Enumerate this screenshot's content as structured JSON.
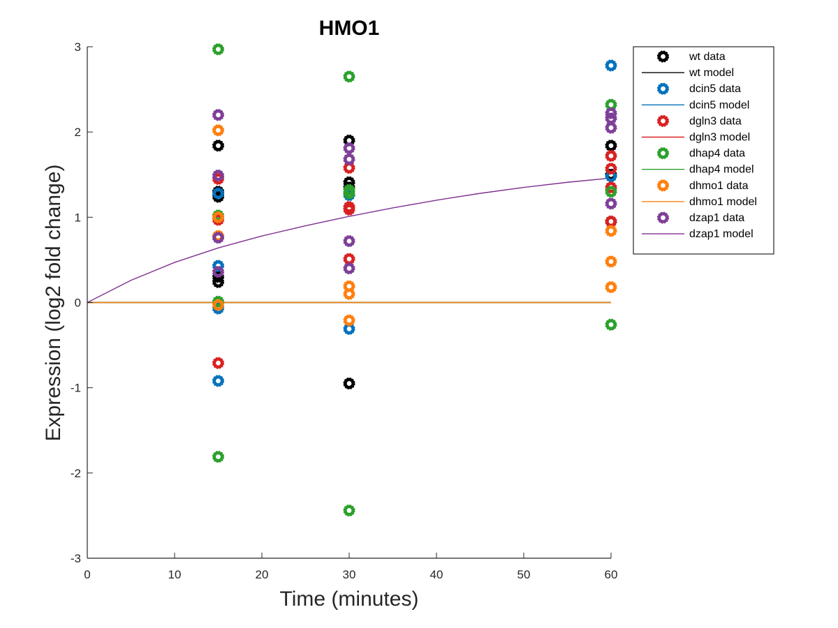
{
  "chart_data": {
    "type": "scatter",
    "title": "HMO1",
    "xlabel": "Time (minutes)",
    "ylabel": "Expression (log2 fold change)",
    "xlim": [
      0,
      60
    ],
    "ylim": [
      -3,
      3
    ],
    "xticks": [
      0,
      10,
      20,
      30,
      40,
      50,
      60
    ],
    "yticks": [
      -3,
      -2,
      -1,
      0,
      1,
      2,
      3
    ],
    "x_tick_labels": [
      "0",
      "10",
      "20",
      "30",
      "40",
      "50",
      "60"
    ],
    "y_tick_labels": [
      "-3",
      "-2",
      "-1",
      "0",
      "1",
      "2",
      "3"
    ],
    "grid": false,
    "legend_position": "top-right",
    "series": [
      {
        "name": "wt data",
        "kind": "points",
        "color": "#000000",
        "points": [
          [
            15,
            1.84
          ],
          [
            15,
            1.3
          ],
          [
            15,
            1.24
          ],
          [
            15,
            0.3
          ],
          [
            15,
            0.24
          ],
          [
            30,
            1.9
          ],
          [
            30,
            1.41
          ],
          [
            30,
            1.35
          ],
          [
            30,
            -0.95
          ],
          [
            60,
            1.84
          ],
          [
            60,
            1.5
          ],
          [
            60,
            0.95
          ]
        ]
      },
      {
        "name": "wt model",
        "kind": "line",
        "color": "#000000",
        "x": [
          0,
          60
        ],
        "y": [
          0,
          0
        ]
      },
      {
        "name": "dcin5 data",
        "kind": "points",
        "color": "#0072BD",
        "points": [
          [
            15,
            1.28
          ],
          [
            15,
            0.43
          ],
          [
            15,
            -0.07
          ],
          [
            15,
            -0.92
          ],
          [
            30,
            1.26
          ],
          [
            30,
            -0.31
          ],
          [
            60,
            2.78
          ],
          [
            60,
            1.48
          ]
        ]
      },
      {
        "name": "dcin5 model",
        "kind": "line",
        "color": "#0072BD",
        "x": [
          0,
          60
        ],
        "y": [
          0,
          0
        ]
      },
      {
        "name": "dgln3 data",
        "kind": "points",
        "color": "#D92121",
        "points": [
          [
            15,
            1.45
          ],
          [
            15,
            0.97
          ],
          [
            15,
            -0.71
          ],
          [
            30,
            1.58
          ],
          [
            30,
            1.12
          ],
          [
            30,
            1.09
          ],
          [
            30,
            0.51
          ],
          [
            60,
            1.72
          ],
          [
            60,
            1.57
          ],
          [
            60,
            1.35
          ],
          [
            60,
            0.95
          ]
        ]
      },
      {
        "name": "dgln3 model",
        "kind": "line",
        "color": "#D92121",
        "x": [
          0,
          60
        ],
        "y": [
          0,
          0
        ]
      },
      {
        "name": "dhap4 data",
        "kind": "points",
        "color": "#2CA02C",
        "points": [
          [
            15,
            2.97
          ],
          [
            15,
            1.02
          ],
          [
            15,
            0.01
          ],
          [
            15,
            -1.81
          ],
          [
            30,
            2.65
          ],
          [
            30,
            1.32
          ],
          [
            30,
            1.28
          ],
          [
            30,
            -2.44
          ],
          [
            60,
            2.32
          ],
          [
            60,
            1.3
          ],
          [
            60,
            -0.26
          ]
        ]
      },
      {
        "name": "dhap4 model",
        "kind": "line",
        "color": "#2CA02C",
        "x": [
          0,
          60
        ],
        "y": [
          0,
          0
        ]
      },
      {
        "name": "dhmo1 data",
        "kind": "points",
        "color": "#FF7F0E",
        "points": [
          [
            15,
            2.02
          ],
          [
            15,
            1.0
          ],
          [
            15,
            0.78
          ],
          [
            15,
            -0.03
          ],
          [
            30,
            0.19
          ],
          [
            30,
            0.1
          ],
          [
            30,
            -0.21
          ],
          [
            60,
            0.84
          ],
          [
            60,
            0.48
          ],
          [
            60,
            0.18
          ]
        ]
      },
      {
        "name": "dhmo1 model",
        "kind": "line",
        "color": "#FF7F0E",
        "x": [
          0,
          60
        ],
        "y": [
          0,
          0
        ]
      },
      {
        "name": "dzap1 data",
        "kind": "points",
        "color": "#7E3F98",
        "points": [
          [
            15,
            2.2
          ],
          [
            15,
            1.49
          ],
          [
            15,
            0.76
          ],
          [
            15,
            0.36
          ],
          [
            30,
            1.81
          ],
          [
            30,
            1.68
          ],
          [
            30,
            0.72
          ],
          [
            30,
            0.4
          ],
          [
            60,
            2.22
          ],
          [
            60,
            2.16
          ],
          [
            60,
            2.05
          ],
          [
            60,
            1.16
          ]
        ]
      },
      {
        "name": "dzap1 model",
        "kind": "line",
        "color": "#7E2F8E",
        "x": [
          0,
          5,
          10,
          15,
          20,
          25,
          30,
          35,
          40,
          45,
          50,
          55,
          60
        ],
        "y": [
          0,
          0.26,
          0.47,
          0.64,
          0.78,
          0.9,
          1.01,
          1.11,
          1.2,
          1.28,
          1.35,
          1.41,
          1.46
        ]
      }
    ]
  }
}
